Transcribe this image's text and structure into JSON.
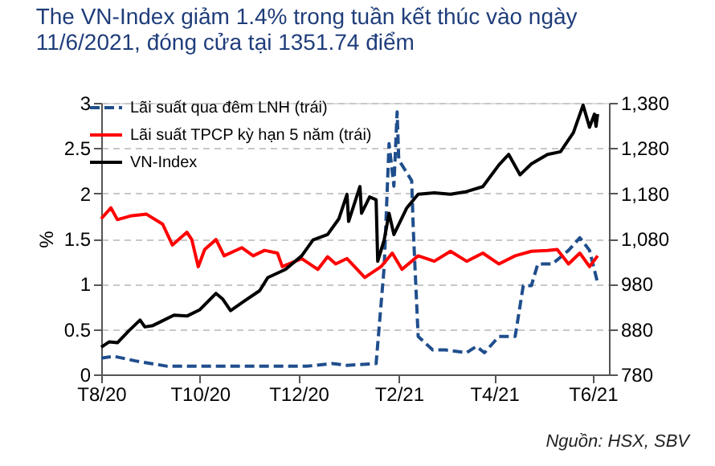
{
  "chart_data": {
    "type": "line",
    "title": [
      "The VN-Index giảm 1.4% trong tuần kết thúc vào ngày",
      "11/6/2021, đóng cửa tại 1351.74 điểm"
    ],
    "ylabel": "%",
    "xlim": [
      "2020-08-01",
      "2021-06-11"
    ],
    "xticks": [
      {
        "value": "2020-08-01",
        "label": "T8/20"
      },
      {
        "value": "2020-10-01",
        "label": "T10/20"
      },
      {
        "value": "2020-12-01",
        "label": "T12/20"
      },
      {
        "value": "2021-02-01",
        "label": "T2/21"
      },
      {
        "value": "2021-04-01",
        "label": "T4/21"
      },
      {
        "value": "2021-06-01",
        "label": "T6/21"
      }
    ],
    "ylim": [
      0,
      3
    ],
    "yticks": [
      0,
      0.5,
      1,
      1.5,
      2,
      2.5,
      3
    ],
    "y2lim": [
      780,
      1380
    ],
    "y2ticks": [
      780,
      880,
      980,
      {
        "value": 1080,
        "label": "1,080"
      },
      {
        "value": 1180,
        "label": "1,180"
      },
      {
        "value": 1280,
        "label": "1,280"
      },
      {
        "value": 1380,
        "label": "1,380"
      }
    ],
    "grid": "y",
    "legend": "top left",
    "annotations": [
      "Nguồn: HSX, SBV"
    ],
    "series": [
      {
        "name": "Lãi suất qua đêm LNH (trái)",
        "color": "#1f4e8c",
        "line_style": "dashed",
        "x": [
          "2020-08-01",
          "2020-08-09",
          "2020-08-22",
          "2020-09-11",
          "2020-10-01",
          "2020-11-03",
          "2020-12-06",
          "2020-12-22",
          "2020-12-31",
          "2021-01-18",
          "2021-01-23",
          "2021-01-26",
          "2021-01-29",
          "2021-01-31",
          "2021-02-01",
          "2021-02-09",
          "2021-02-10",
          "2021-02-13",
          "2021-02-22",
          "2021-03-02",
          "2021-03-15",
          "2021-03-21",
          "2021-03-26",
          "2021-04-04",
          "2021-04-14",
          "2021-04-19",
          "2021-04-24",
          "2021-04-28",
          "2021-05-07",
          "2021-05-17",
          "2021-05-24",
          "2021-05-30",
          "2021-06-04"
        ],
        "values": [
          0.18,
          0.2,
          0.15,
          0.09,
          0.09,
          0.09,
          0.09,
          0.12,
          0.1,
          0.12,
          1.19,
          2.55,
          2.08,
          2.9,
          2.37,
          2.14,
          1.6,
          0.42,
          0.27,
          0.27,
          0.24,
          0.31,
          0.24,
          0.42,
          0.42,
          0.98,
          0.98,
          1.22,
          1.22,
          1.37,
          1.51,
          1.37,
          1.01
        ]
      },
      {
        "name": "Lãi suất TPCP kỳ hạn 5 năm (trái)",
        "color": "#ff0000",
        "line_style": "solid",
        "x": [
          "2020-08-01",
          "2020-08-07",
          "2020-08-11",
          "2020-08-19",
          "2020-08-29",
          "2020-09-08",
          "2020-09-14",
          "2020-09-23",
          "2020-09-26",
          "2020-09-30",
          "2020-10-04",
          "2020-10-11",
          "2020-10-16",
          "2020-10-27",
          "2020-11-03",
          "2020-11-10",
          "2020-11-18",
          "2020-11-21",
          "2020-12-03",
          "2020-12-13",
          "2020-12-19",
          "2020-12-24",
          "2020-12-31",
          "2021-01-11",
          "2021-01-21",
          "2021-01-28",
          "2021-02-03",
          "2021-02-13",
          "2021-02-23",
          "2021-03-05",
          "2021-03-15",
          "2021-03-25",
          "2021-04-04",
          "2021-04-14",
          "2021-04-24",
          "2021-05-04",
          "2021-05-10",
          "2021-05-17",
          "2021-05-24",
          "2021-05-30",
          "2021-06-04"
        ],
        "values": [
          1.72,
          1.84,
          1.71,
          1.75,
          1.77,
          1.66,
          1.43,
          1.57,
          1.49,
          1.19,
          1.38,
          1.49,
          1.31,
          1.4,
          1.31,
          1.37,
          1.34,
          1.19,
          1.28,
          1.16,
          1.3,
          1.22,
          1.28,
          1.07,
          1.19,
          1.34,
          1.16,
          1.31,
          1.25,
          1.36,
          1.25,
          1.34,
          1.22,
          1.31,
          1.36,
          1.37,
          1.38,
          1.22,
          1.34,
          1.19,
          1.31
        ]
      },
      {
        "name": "VN-Index",
        "color": "#000000",
        "line_style": "solid",
        "axis": "y2",
        "x": [
          "2020-08-01",
          "2020-08-06",
          "2020-08-11",
          "2020-08-18",
          "2020-08-25",
          "2020-08-28",
          "2020-09-02",
          "2020-09-15",
          "2020-09-23",
          "2020-10-01",
          "2020-10-11",
          "2020-10-15",
          "2020-10-20",
          "2020-10-28",
          "2020-11-07",
          "2020-11-12",
          "2020-11-23",
          "2020-12-03",
          "2020-12-10",
          "2020-12-19",
          "2020-12-26",
          "2020-12-31",
          "2021-01-01",
          "2021-01-08",
          "2021-01-09",
          "2021-01-14",
          "2021-01-18",
          "2021-01-19",
          "2021-01-23",
          "2021-01-26",
          "2021-01-29",
          "2021-02-06",
          "2021-02-13",
          "2021-02-23",
          "2021-03-05",
          "2021-03-15",
          "2021-03-25",
          "2021-04-04",
          "2021-04-10",
          "2021-04-17",
          "2021-04-24",
          "2021-05-04",
          "2021-05-12",
          "2021-05-20",
          "2021-05-26",
          "2021-05-30",
          "2021-06-02",
          "2021-06-03",
          "2021-06-04"
        ],
        "values": [
          840,
          852,
          850,
          876,
          900,
          885,
          888,
          911,
          909,
          923,
          959,
          947,
          921,
          941,
          965,
          994,
          1012,
          1042,
          1077,
          1089,
          1124,
          1178,
          1118,
          1195,
          1136,
          1172,
          1166,
          1030,
          1077,
          1136,
          1089,
          1148,
          1178,
          1181,
          1178,
          1184,
          1195,
          1243,
          1266,
          1221,
          1245,
          1266,
          1272,
          1314,
          1375,
          1326,
          1355,
          1328,
          1355
        ]
      }
    ]
  }
}
